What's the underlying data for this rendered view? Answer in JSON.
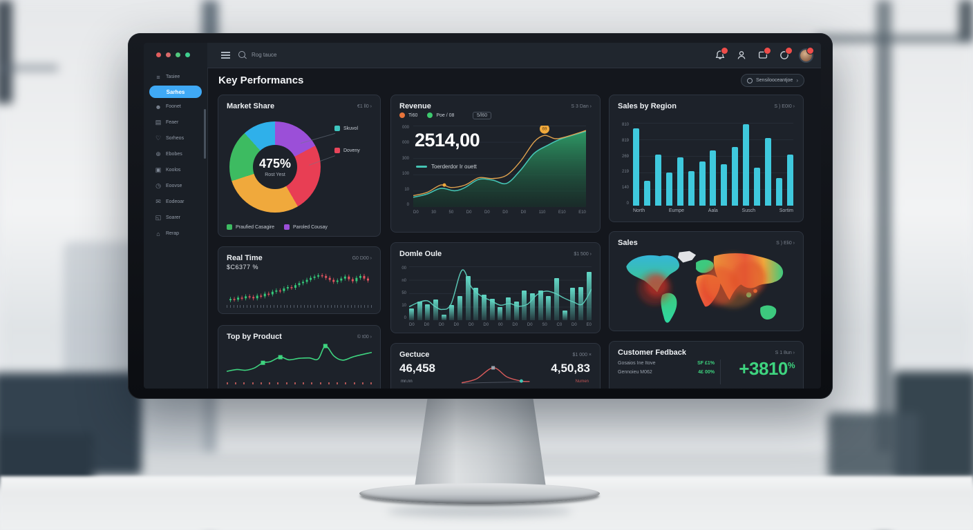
{
  "sidebar": {
    "dot_colors": [
      "#e15d5d",
      "#d96a6a",
      "#52c77d",
      "#3fcf8f"
    ],
    "items": [
      {
        "label": "Tasiee",
        "icon": "list-icon",
        "active": false
      },
      {
        "label": "Sarhes",
        "icon": "",
        "active": true
      },
      {
        "label": "Foonet",
        "icon": "user-icon",
        "active": false
      },
      {
        "label": "Feaer",
        "icon": "panel-icon",
        "active": false
      },
      {
        "label": "Sorheos",
        "icon": "heart-icon",
        "active": false
      },
      {
        "label": "Ebobes",
        "icon": "globe-icon",
        "active": false
      },
      {
        "label": "Koolos",
        "icon": "card-icon",
        "active": false
      },
      {
        "label": "Eoovse",
        "icon": "clock-icon",
        "active": false
      },
      {
        "label": "Eodeoar",
        "icon": "mail-icon",
        "active": false
      },
      {
        "label": "Soarer",
        "icon": "chat-icon",
        "active": false
      },
      {
        "label": "Rerap",
        "icon": "folder-icon",
        "active": false
      }
    ]
  },
  "topbar": {
    "search_placeholder": "Rog tauce"
  },
  "header": {
    "title": "Key Performancs",
    "search_button": "Sensilooceantjoe",
    "search_chevron": "›"
  },
  "cards": {
    "market_share": {
      "title": "Market Share",
      "link": "€1 ll0 ›",
      "center_value": "475%",
      "center_label": "Rost Yest",
      "callouts": [
        {
          "label": "Skuvol",
          "color": "#3ec6c0"
        },
        {
          "label": "Doveny",
          "color": "#e8455a"
        }
      ],
      "legend": [
        {
          "label": "Praufied Casagire",
          "color": "#3dbb61"
        },
        {
          "label": "Paroled Cousay",
          "color": "#9b4fd8"
        }
      ],
      "segments": [
        {
          "color": "#9b4fd8",
          "to": 62
        },
        {
          "color": "#e83e54",
          "to": 150
        },
        {
          "color": "#f0a93c",
          "to": 252
        },
        {
          "color": "#3dbb61",
          "to": 318
        },
        {
          "color": "#2fb0ea",
          "to": 360
        }
      ]
    },
    "revenue": {
      "title": "Revenue",
      "link": "S 3 Dan ›",
      "legend": [
        {
          "label": "Ti60",
          "color": "#e8743b"
        },
        {
          "label": "Poe / 08",
          "color": "#3dc96e"
        }
      ],
      "legend_pill": "5/l60",
      "big_value": "2514,00",
      "line_legend": "Toerderdor Ir ouett",
      "y_labels": [
        "000",
        "000",
        "300",
        "100",
        "10",
        "0"
      ],
      "x_labels": [
        "D0",
        "30",
        "50",
        "D0",
        "D0",
        "D0",
        "D0",
        "110",
        "E10",
        "E10"
      ]
    },
    "sales_by_region": {
      "title": "Sales by Region",
      "link": "S ) E0I0 ›",
      "y_labels": [
        "810",
        "819",
        "269",
        "219",
        "140",
        "0"
      ],
      "x_labels": [
        "North",
        "Eumpe",
        "Aala",
        "Susch",
        "Sortim"
      ]
    },
    "real_time": {
      "title": "Real Time",
      "link": "G0 D00 ›",
      "value": "$C6377 %"
    },
    "domle": {
      "title": "Domle Oule",
      "link": "$1 500 ›",
      "y_labels": [
        "00",
        "n0",
        "50",
        "10",
        "0"
      ],
      "x_labels": [
        "D0",
        "D0",
        "D0",
        "D0",
        "D0",
        "D0",
        "00",
        "D0",
        "D0",
        "S0",
        "C0",
        "D0",
        "E0"
      ]
    },
    "sales_map": {
      "title": "Sales",
      "link": "S ) Eli0 ›"
    },
    "product": {
      "title": "Top by Product",
      "link": "© t00 ›"
    },
    "gectuce": {
      "title": "Gectuce",
      "link": "$1 000 ×",
      "left_value": "46,458",
      "right_value": "4,50,83",
      "left_sub": "mn.nn",
      "right_sub": "Numen"
    },
    "feedback": {
      "title": "Customer Fedback",
      "link": "S 1 8un ›",
      "rows": [
        {
          "label": "Gosaios Ine Itove",
          "value": "SF £1%"
        },
        {
          "label": "Gennoieu M062",
          "value": "4£ 00%"
        }
      ],
      "big_value": "+3810",
      "big_unit": "%"
    }
  },
  "charts": {
    "region": {
      "type": "bar",
      "color": "#3fc9dd",
      "values": [
        93,
        30,
        62,
        40,
        58,
        42,
        53,
        67,
        50,
        71,
        98,
        46,
        82,
        33,
        62
      ]
    },
    "domle_bars": {
      "type": "bar",
      "color": "#52cdbb",
      "values": [
        22,
        35,
        30,
        38,
        10,
        28,
        45,
        82,
        60,
        48,
        40,
        25,
        42,
        35,
        55,
        50,
        55,
        45,
        78,
        18,
        60,
        62,
        90
      ]
    },
    "domle_line": {
      "type": "line",
      "color": "#5fd4c0",
      "points": [
        [
          0,
          25
        ],
        [
          5,
          33
        ],
        [
          10,
          36
        ],
        [
          14,
          26
        ],
        [
          18,
          20
        ],
        [
          23,
          30
        ],
        [
          29,
          93
        ],
        [
          34,
          62
        ],
        [
          39,
          46
        ],
        [
          45,
          36
        ],
        [
          50,
          28
        ],
        [
          55,
          31
        ],
        [
          60,
          26
        ],
        [
          65,
          30
        ],
        [
          70,
          47
        ],
        [
          75,
          54
        ],
        [
          80,
          50
        ],
        [
          85,
          41
        ],
        [
          90,
          34
        ],
        [
          95,
          30
        ],
        [
          100,
          58
        ]
      ]
    },
    "revenue_green": {
      "type": "area",
      "color": "#45c4b4",
      "points": [
        [
          0,
          12
        ],
        [
          8,
          16
        ],
        [
          16,
          23
        ],
        [
          24,
          20
        ],
        [
          30,
          24
        ],
        [
          38,
          34
        ],
        [
          46,
          33
        ],
        [
          54,
          29
        ],
        [
          62,
          45
        ],
        [
          70,
          66
        ],
        [
          78,
          76
        ],
        [
          86,
          84
        ],
        [
          100,
          93
        ]
      ]
    },
    "revenue_orange": {
      "type": "line",
      "color": "#e0a24e",
      "points": [
        [
          0,
          14
        ],
        [
          8,
          18
        ],
        [
          16,
          27
        ],
        [
          22,
          24
        ],
        [
          30,
          27
        ],
        [
          38,
          36
        ],
        [
          46,
          35
        ],
        [
          54,
          39
        ],
        [
          62,
          56
        ],
        [
          70,
          80
        ],
        [
          76,
          88
        ],
        [
          82,
          84
        ],
        [
          88,
          86
        ],
        [
          100,
          94
        ]
      ],
      "markers": [
        {
          "x": 76,
          "y": 96,
          "r": 7,
          "shape": "circle",
          "color": "#f0a93c",
          "label": "69"
        },
        {
          "x": 18,
          "y": 27,
          "r": 2.5,
          "shape": "circle",
          "color": "#f0a93c",
          "label": ""
        }
      ]
    },
    "product_line": {
      "type": "line",
      "color": "#3ed47f",
      "points": [
        [
          0,
          22
        ],
        [
          7,
          27
        ],
        [
          13,
          25
        ],
        [
          19,
          31
        ],
        [
          25,
          45
        ],
        [
          30,
          48
        ],
        [
          37,
          60
        ],
        [
          43,
          53
        ],
        [
          50,
          57
        ],
        [
          57,
          58
        ],
        [
          63,
          55
        ],
        [
          68,
          90
        ],
        [
          74,
          63
        ],
        [
          80,
          52
        ],
        [
          88,
          62
        ],
        [
          100,
          73
        ]
      ],
      "markers": [
        {
          "x": 25,
          "y": 45,
          "r": 3,
          "shape": "square",
          "color": "#3ed47f",
          "label": ""
        },
        {
          "x": 37,
          "y": 60,
          "r": 3,
          "shape": "square",
          "color": "#3ed47f",
          "label": ""
        },
        {
          "x": 68,
          "y": 90,
          "r": 3,
          "shape": "square",
          "color": "#3ed47f",
          "label": ""
        }
      ]
    },
    "gectuce_line": {
      "type": "line",
      "color": "#d95b5b",
      "points": [
        [
          0,
          4
        ],
        [
          18,
          22
        ],
        [
          38,
          72
        ],
        [
          55,
          30
        ],
        [
          72,
          12
        ],
        [
          82,
          10
        ]
      ],
      "markers": [
        {
          "x": 38,
          "y": 72,
          "r": 2.5,
          "shape": "square",
          "color": "#9aa3ad",
          "label": ""
        },
        {
          "x": 72,
          "y": 12,
          "r": 2.5,
          "shape": "circle",
          "color": "#45c4b4",
          "label": ""
        }
      ]
    },
    "gectuce_base": {
      "type": "line",
      "color": "#6a7280",
      "points": [
        [
          0,
          2
        ],
        [
          40,
          6
        ],
        [
          82,
          9
        ]
      ]
    },
    "realtime_candles": {
      "type": "candlestick",
      "up_color": "#34c97a",
      "down_color": "#e35560",
      "closes": [
        30,
        32,
        31,
        34,
        33,
        36,
        35,
        33,
        37,
        36,
        40,
        39,
        43,
        45,
        44,
        48,
        50,
        49,
        53,
        56,
        58,
        61,
        64,
        66,
        68,
        67,
        64,
        61,
        58,
        60,
        63,
        66,
        62,
        59,
        64,
        67,
        63,
        60
      ]
    }
  }
}
